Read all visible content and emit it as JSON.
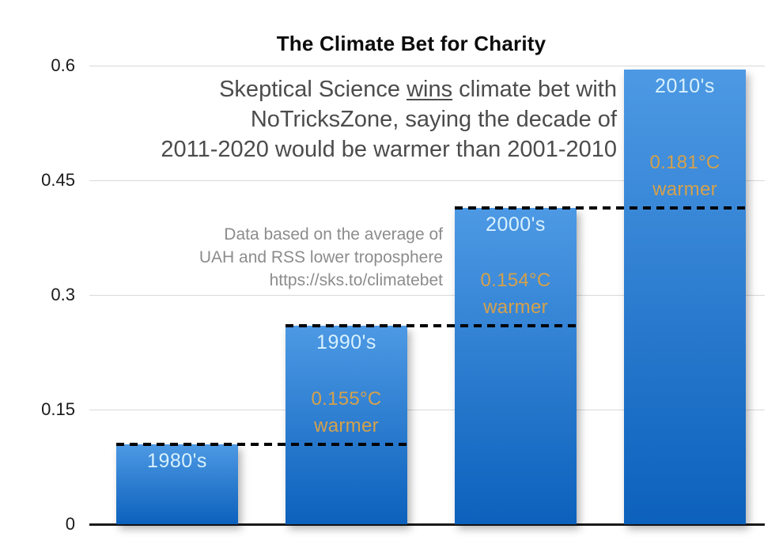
{
  "subtitle": {
    "line1_pre": "Skeptical Science ",
    "line1_underlined": "wins",
    "line1_post": " climate bet with",
    "line2": "NoTricksZone, saying the decade of",
    "line3": "2011-2020 would be warmer than 2001-2010"
  },
  "note": {
    "line1": "Data based on the average of",
    "line2": "UAH and RSS lower troposphere",
    "line3": "https://sks.to/climatebet"
  },
  "chart_data": {
    "type": "bar",
    "title": "The Climate Bet for Charity",
    "categories": [
      "1980's",
      "1990's",
      "2000's",
      "2010's"
    ],
    "values": [
      0.105,
      0.26,
      0.414,
      0.595
    ],
    "bar_annotations": [
      "",
      "0.155°C\nwarmer",
      "0.154°C\nwarmer",
      "0.181°C\nwarmer"
    ],
    "dashed_reference_lines": [
      {
        "level": 0.105,
        "from_bar": 0,
        "to_bar": 1
      },
      {
        "level": 0.26,
        "from_bar": 1,
        "to_bar": 2
      },
      {
        "level": 0.414,
        "from_bar": 2,
        "to_bar": 3
      }
    ],
    "yticks": [
      "0",
      "0.15",
      "0.3",
      "0.45",
      "0.6"
    ],
    "ytick_values": [
      0,
      0.15,
      0.3,
      0.45,
      0.6
    ],
    "ylim": [
      0,
      0.6
    ],
    "xlabel": "",
    "ylabel": "",
    "grid": true,
    "legend_position": "none",
    "colors": {
      "bar_gradient_top": "#4d99e4",
      "bar_gradient_bottom": "#0c61bc",
      "category_label": "#d8f1fd",
      "annotation_text": "#d5a14b",
      "gridline": "#d9d9d9",
      "axis_line": "#1a1a1a",
      "dashed_line": "#000000",
      "title_text": "#0b0b0b",
      "subtitle_text": "#4c4c4c",
      "note_text": "#8c8c8c"
    }
  }
}
